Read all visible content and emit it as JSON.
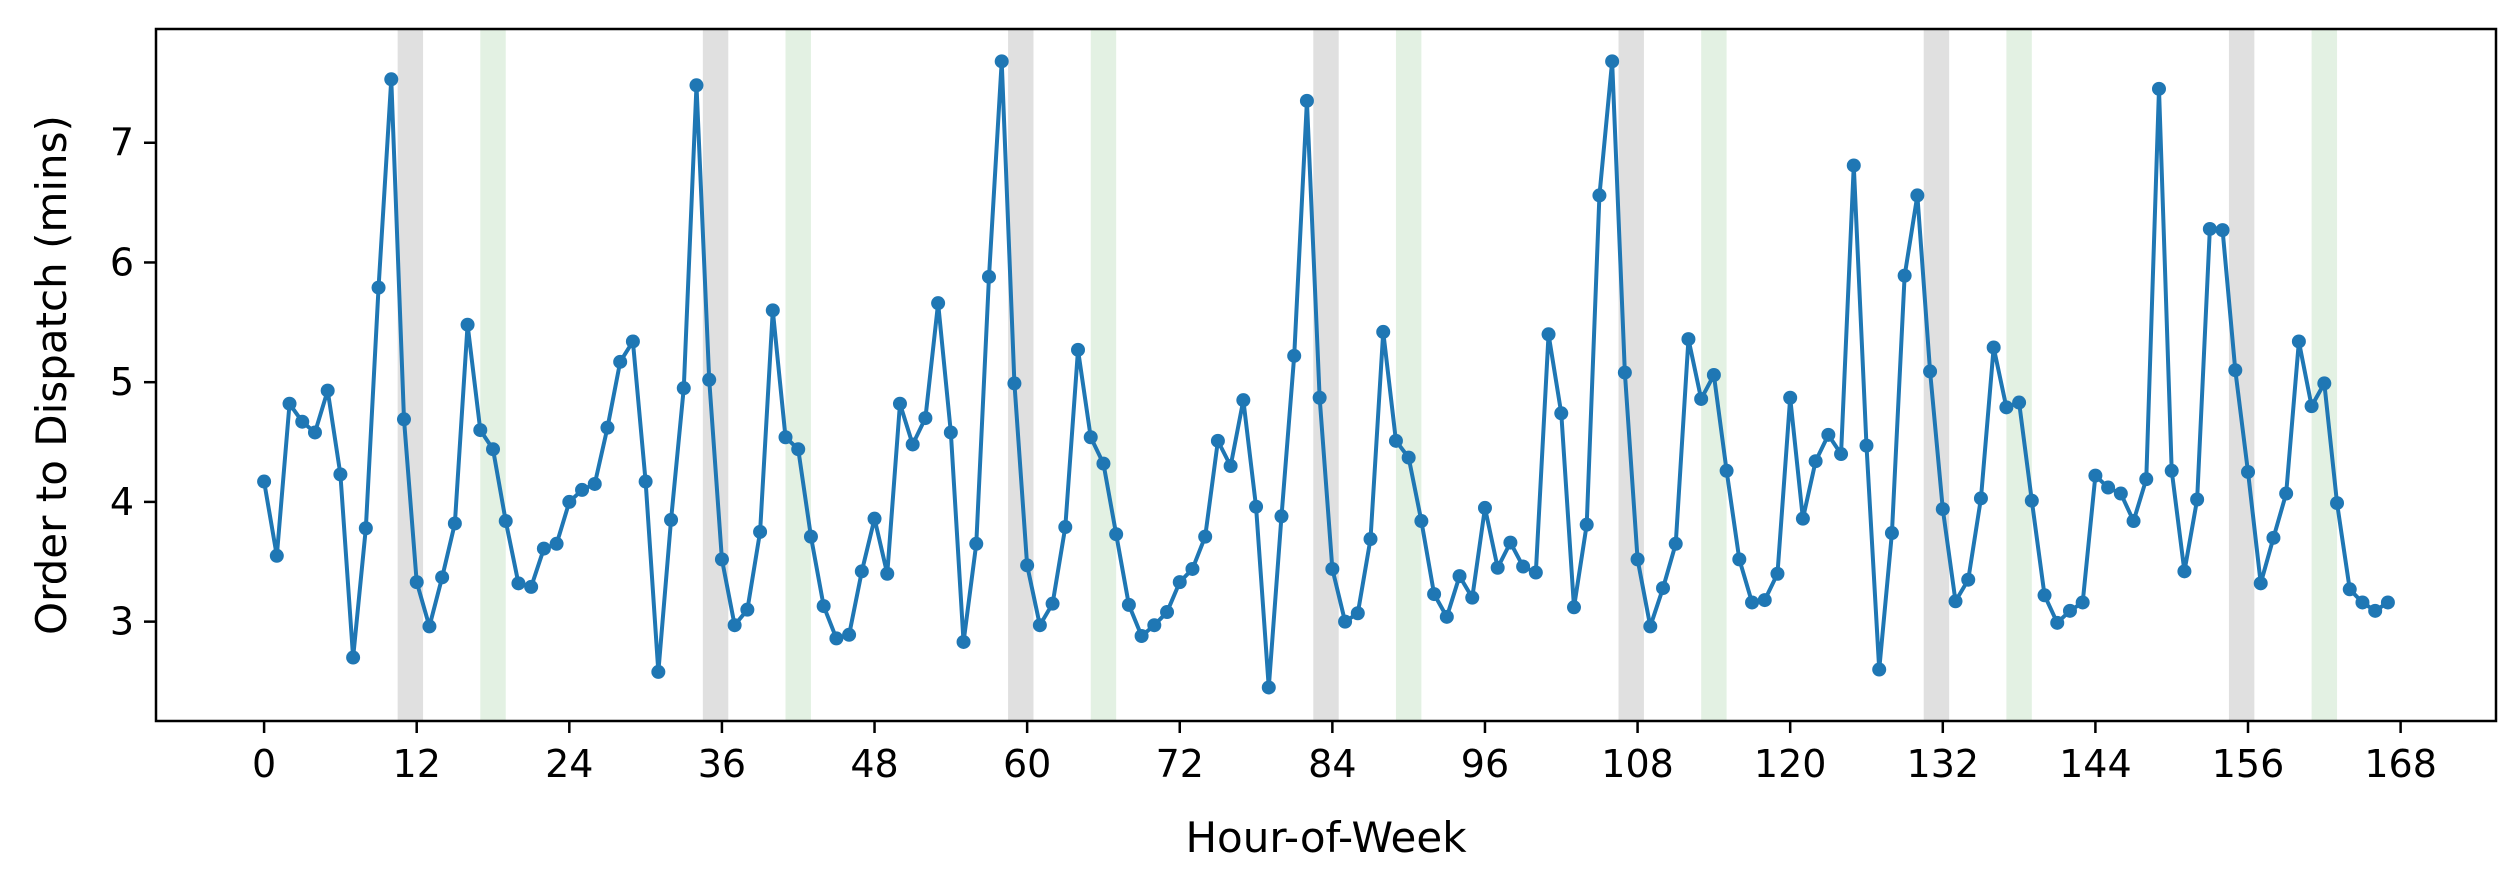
{
  "chart_data": {
    "type": "line",
    "title": "",
    "xlabel": "Hour-of-Week",
    "ylabel": "Order to Dispatch (mins)",
    "xlim": [
      -8.5,
      175.5
    ],
    "ylim": [
      2.17,
      7.95
    ],
    "x_ticks": [
      0,
      12,
      24,
      36,
      48,
      60,
      72,
      84,
      96,
      108,
      120,
      132,
      144,
      156,
      168
    ],
    "y_ticks": [
      3,
      4,
      5,
      6,
      7
    ],
    "grid": false,
    "legend": "none",
    "series": [
      {
        "color": "#1f77b4",
        "marker": "circle",
        "x": [
          0,
          1,
          2,
          3,
          4,
          5,
          6,
          7,
          8,
          9,
          10,
          11,
          12,
          13,
          14,
          15,
          16,
          17,
          18,
          19,
          20,
          21,
          22,
          23,
          24,
          25,
          26,
          27,
          28,
          29,
          30,
          31,
          32,
          33,
          34,
          35,
          36,
          37,
          38,
          39,
          40,
          41,
          42,
          43,
          44,
          45,
          46,
          47,
          48,
          49,
          50,
          51,
          52,
          53,
          54,
          55,
          56,
          57,
          58,
          59,
          60,
          61,
          62,
          63,
          64,
          65,
          66,
          67,
          68,
          69,
          70,
          71,
          72,
          73,
          74,
          75,
          76,
          77,
          78,
          79,
          80,
          81,
          82,
          83,
          84,
          85,
          86,
          87,
          88,
          89,
          90,
          91,
          92,
          93,
          94,
          95,
          96,
          97,
          98,
          99,
          100,
          101,
          102,
          103,
          104,
          105,
          106,
          107,
          108,
          109,
          110,
          111,
          112,
          113,
          114,
          115,
          116,
          117,
          118,
          119,
          120,
          121,
          122,
          123,
          124,
          125,
          126,
          127,
          128,
          129,
          130,
          131,
          132,
          133,
          134,
          135,
          136,
          137,
          138,
          139,
          140,
          141,
          142,
          143,
          144,
          145,
          146,
          147,
          148,
          149,
          150,
          151,
          152,
          153,
          154,
          155,
          156,
          157,
          158,
          159,
          160,
          161,
          162,
          163,
          164,
          165,
          166,
          167
        ],
        "y": [
          4.17,
          3.55,
          4.82,
          4.67,
          4.58,
          4.93,
          4.23,
          2.7,
          3.78,
          5.79,
          7.53,
          4.69,
          3.33,
          2.96,
          3.37,
          3.82,
          5.48,
          4.6,
          4.44,
          3.84,
          3.32,
          3.29,
          3.61,
          3.65,
          4.0,
          4.1,
          4.15,
          4.62,
          5.17,
          5.34,
          4.17,
          2.58,
          3.85,
          4.95,
          7.48,
          5.02,
          3.52,
          2.97,
          3.1,
          3.75,
          5.6,
          4.54,
          4.44,
          3.71,
          3.13,
          2.86,
          2.89,
          3.42,
          3.86,
          3.4,
          4.82,
          4.48,
          4.7,
          5.66,
          4.58,
          2.83,
          3.65,
          5.88,
          7.68,
          4.99,
          3.47,
          2.97,
          3.15,
          3.79,
          5.27,
          4.54,
          4.32,
          3.73,
          3.14,
          2.88,
          2.97,
          3.08,
          3.33,
          3.44,
          3.71,
          4.51,
          4.3,
          4.85,
          3.96,
          2.45,
          3.88,
          5.22,
          7.35,
          4.87,
          3.44,
          3.0,
          3.07,
          3.69,
          5.42,
          4.51,
          4.37,
          3.84,
          3.23,
          3.04,
          3.38,
          3.2,
          3.95,
          3.45,
          3.66,
          3.46,
          3.41,
          5.4,
          4.74,
          3.12,
          3.81,
          6.56,
          7.68,
          5.08,
          3.52,
          2.96,
          3.28,
          3.65,
          5.36,
          4.86,
          5.06,
          4.26,
          3.52,
          3.16,
          3.18,
          3.4,
          4.87,
          3.86,
          4.34,
          4.56,
          4.4,
          6.81,
          4.47,
          2.6,
          3.74,
          5.89,
          6.56,
          5.09,
          3.94,
          3.17,
          3.35,
          4.03,
          5.29,
          4.79,
          4.83,
          4.01,
          3.22,
          2.99,
          3.09,
          3.16,
          4.22,
          4.12,
          4.07,
          3.84,
          4.19,
          7.45,
          4.26,
          3.42,
          4.02,
          6.28,
          6.27,
          5.1,
          4.25,
          3.32,
          3.7,
          4.07,
          5.34,
          4.8,
          4.99,
          3.99,
          3.27,
          3.16,
          3.09,
          3.16
        ]
      }
    ],
    "shaded_spans": {
      "gray": {
        "color": "#e0e0e0",
        "ranges": [
          [
            10.5,
            12.5
          ],
          [
            34.5,
            36.5
          ],
          [
            58.5,
            60.5
          ],
          [
            82.5,
            84.5
          ],
          [
            106.5,
            108.5
          ],
          [
            130.5,
            132.5
          ],
          [
            154.5,
            156.5
          ]
        ]
      },
      "green": {
        "color": "#e3f1e3",
        "ranges": [
          [
            17,
            19
          ],
          [
            41,
            43
          ],
          [
            65,
            67
          ],
          [
            89,
            91
          ],
          [
            113,
            115
          ],
          [
            137,
            139
          ],
          [
            161,
            163
          ]
        ]
      }
    }
  }
}
